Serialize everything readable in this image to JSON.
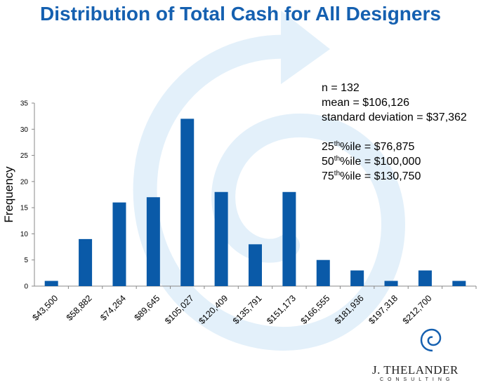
{
  "title": "Distribution of Total Cash for All Designers",
  "stats": {
    "n": "n = 132",
    "mean": "mean = $106,126",
    "sd": "standard deviation = $37,362",
    "p25": {
      "pre": "25",
      "sup": "th",
      "post": "%ile = $76,875"
    },
    "p50": {
      "pre": "50",
      "sup": "th",
      "post": "%ile = $100,000"
    },
    "p75": {
      "pre": "75",
      "sup": "th",
      "post": "%ile = $130,750"
    }
  },
  "logo": {
    "name": "J. THELANDER",
    "sub": "CONSULTING"
  },
  "colors": {
    "bar": "#0a5aa8",
    "title": "#1560b0",
    "watermark": "#e3f0fa",
    "logo_accent": "#1560b0"
  },
  "chart_data": {
    "type": "bar",
    "ylabel": "Frequency",
    "xlabel": "",
    "ylim": [
      0,
      35
    ],
    "yticks": [
      0,
      5,
      10,
      15,
      20,
      25,
      30,
      35
    ],
    "categories": [
      "$43,500",
      "$58,882",
      "$74,264",
      "$89,645",
      "$105,027",
      "$120,409",
      "$135,791",
      "$151,173",
      "$166,555",
      "$181,936",
      "$197,318",
      "$212,700",
      ""
    ],
    "values": [
      1,
      9,
      16,
      17,
      32,
      18,
      8,
      18,
      5,
      3,
      1,
      3,
      1
    ],
    "grid": false,
    "legend": "none"
  }
}
